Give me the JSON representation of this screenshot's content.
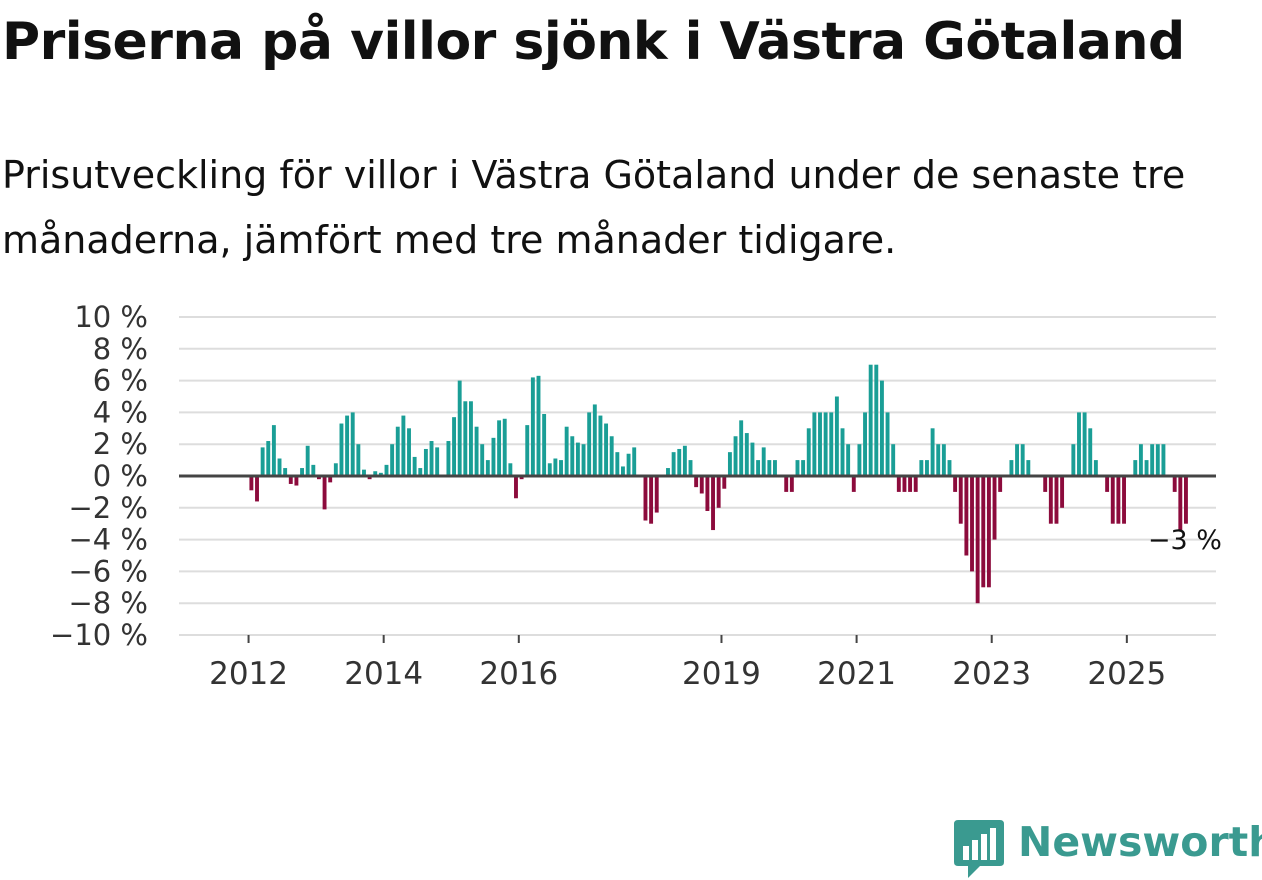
{
  "title": "Priserna på villor sjönk i Västra Götaland",
  "subtitle": "Prisutveckling för villor i Västra Götaland under de senaste tre månaderna, jämfört med tre månader tidigare.",
  "brand": {
    "name": "Newsworthy",
    "icon": "newsworthy-logo-icon",
    "color": "#3a9a90"
  },
  "colors": {
    "positive": "#1a9e96",
    "negative": "#8c0b3c"
  },
  "chart_data": {
    "type": "bar",
    "title": "Priserna på villor sjönk i Västra Götaland",
    "xlabel": "",
    "ylabel": "",
    "ylim": [
      -10,
      10
    ],
    "y_ticks": [
      10,
      8,
      6,
      4,
      2,
      0,
      -2,
      -4,
      -6,
      -8,
      -10
    ],
    "y_tick_labels": [
      "10 %",
      "8 %",
      "6 %",
      "4 %",
      "2 %",
      "0 %",
      "−2 %",
      "−4 %",
      "−6 %",
      "−8 %",
      "−10 %"
    ],
    "x_ticks": [
      "2012",
      "2014",
      "2016",
      "2019",
      "2021",
      "2023",
      "2025"
    ],
    "x_tick_months": [
      12,
      36,
      60,
      96,
      120,
      144,
      168
    ],
    "annotation": "−3 %",
    "start": "2011-01",
    "period": "monthly",
    "values": [
      null,
      null,
      null,
      null,
      null,
      null,
      null,
      null,
      null,
      null,
      null,
      null,
      -0.9,
      -1.6,
      1.8,
      2.2,
      3.2,
      1.1,
      0.5,
      -0.5,
      -0.6,
      0.5,
      1.9,
      0.7,
      -0.2,
      -2.1,
      -0.4,
      0.8,
      3.3,
      3.8,
      4.0,
      2.0,
      0.4,
      -0.2,
      0.3,
      0.2,
      0.7,
      2.0,
      3.1,
      3.8,
      3.0,
      1.2,
      0.5,
      1.7,
      2.2,
      1.8,
      null,
      2.2,
      3.7,
      6.0,
      4.7,
      4.7,
      3.1,
      2.0,
      1.0,
      2.4,
      3.5,
      3.6,
      0.8,
      -1.4,
      -0.2,
      3.2,
      6.2,
      6.3,
      3.9,
      0.8,
      1.1,
      1.0,
      3.1,
      2.5,
      2.1,
      2.0,
      4.0,
      4.5,
      3.8,
      3.3,
      2.5,
      1.5,
      0.6,
      1.4,
      1.8,
      null,
      -2.8,
      -3.0,
      -2.3,
      null,
      0.5,
      1.5,
      1.7,
      1.9,
      1.0,
      -0.7,
      -1.1,
      -2.2,
      -3.4,
      -2.0,
      -0.8,
      1.5,
      2.5,
      3.5,
      2.7,
      2.1,
      1.0,
      1.8,
      1.0,
      1.0,
      null,
      -1.0,
      -1.0,
      1.0,
      1.0,
      3.0,
      4.0,
      4.0,
      4.0,
      4.0,
      5.0,
      3.0,
      2.0,
      -1.0,
      2.0,
      4.0,
      7.0,
      7.0,
      6.0,
      4.0,
      2.0,
      -1.0,
      -1.0,
      -1.0,
      -1.0,
      1.0,
      1.0,
      3.0,
      2.0,
      2.0,
      1.0,
      -1.0,
      -3.0,
      -5.0,
      -6.0,
      -8.0,
      -7.0,
      -7.0,
      -4.0,
      -1.0,
      null,
      1.0,
      2.0,
      2.0,
      1.0,
      null,
      null,
      -1.0,
      -3.0,
      -3.0,
      -2.0,
      null,
      2.0,
      4.0,
      4.0,
      3.0,
      1.0,
      null,
      -1.0,
      -3.0,
      -3.0,
      -3.0,
      null,
      1.0,
      2.0,
      1.0,
      2.0,
      2.0,
      2.0,
      null,
      -1.0,
      -3.4,
      -3.0
    ]
  }
}
